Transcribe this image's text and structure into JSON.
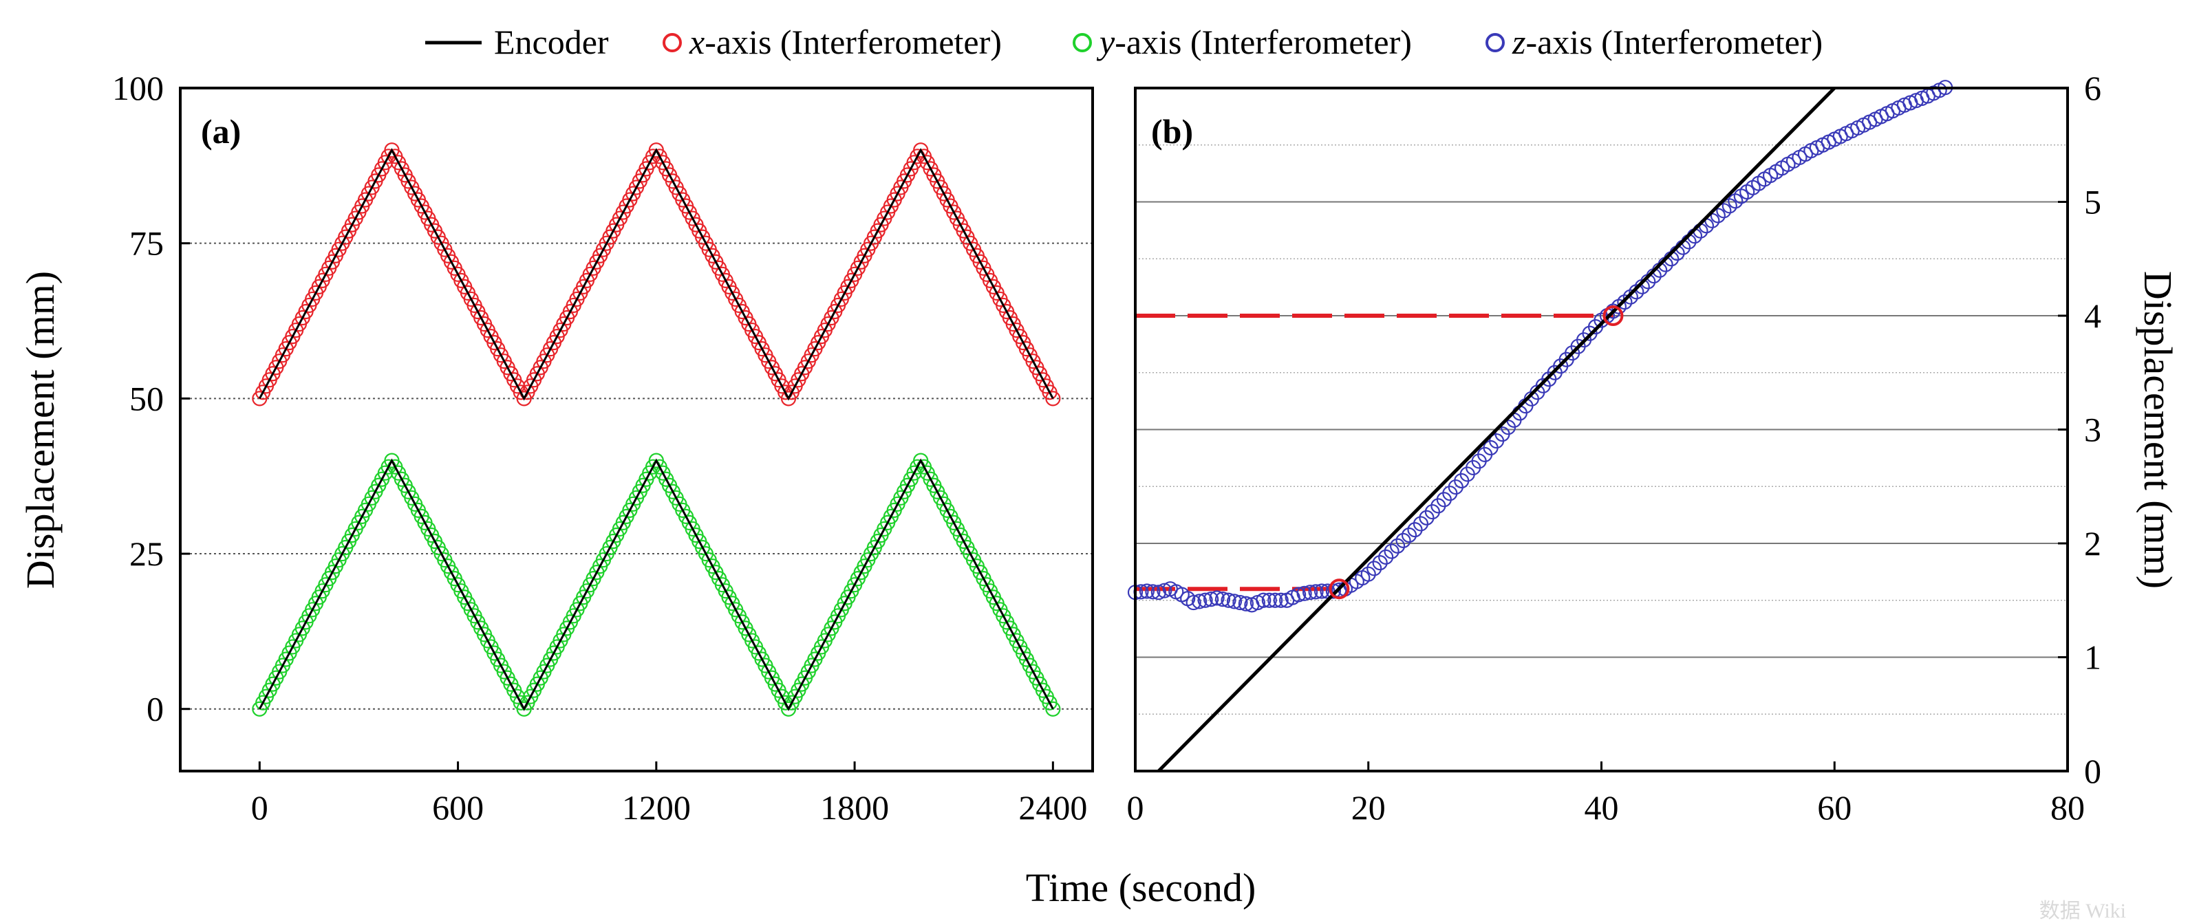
{
  "legend": {
    "encoder": "Encoder",
    "x_axis": {
      "prefix": "x",
      "suffix": "-axis (Interferometer)"
    },
    "y_axis": {
      "prefix": "y",
      "suffix": "-axis (Interferometer)"
    },
    "z_axis": {
      "prefix": "z",
      "suffix": "-axis (Interferometer)"
    }
  },
  "colors": {
    "encoder": "#000000",
    "x_axis": "#e8252b",
    "y_axis": "#1fd12c",
    "z_axis": "#3a3ab8",
    "guide": "#e21f26"
  },
  "xlabel": "Time (second)",
  "watermark": "数据 Wiki",
  "chart_data": [
    {
      "panel": "(a)",
      "type": "line",
      "ylabel": "Displacement (mm)",
      "xlim": [
        -240,
        2520
      ],
      "ylim": [
        -10,
        100
      ],
      "xticks": [
        0,
        600,
        1200,
        1800,
        2400
      ],
      "yticks": [
        0,
        25,
        50,
        75,
        100
      ],
      "grid": "dotted horizontal at 25, 50, 75",
      "series": [
        {
          "name": "Encoder (x)",
          "marker": "line",
          "x": [
            0,
            400,
            800,
            1200,
            1600,
            2000,
            2400
          ],
          "y": [
            50,
            90,
            50,
            90,
            50,
            90,
            50
          ]
        },
        {
          "name": "x-axis (Interferometer)",
          "marker": "circle",
          "x": [
            0,
            400,
            800,
            1200,
            1600,
            2000,
            2400
          ],
          "y": [
            50,
            90,
            50,
            90,
            50,
            90,
            50
          ]
        },
        {
          "name": "Encoder (y)",
          "marker": "line",
          "x": [
            0,
            400,
            800,
            1200,
            1600,
            2000,
            2400
          ],
          "y": [
            0,
            40,
            0,
            40,
            0,
            40,
            0
          ]
        },
        {
          "name": "y-axis (Interferometer)",
          "marker": "circle",
          "x": [
            0,
            400,
            800,
            1200,
            1600,
            2000,
            2400
          ],
          "y": [
            0,
            40,
            0,
            40,
            0,
            40,
            0
          ]
        }
      ]
    },
    {
      "panel": "(b)",
      "type": "line",
      "ylabel": "Displacement (mm)",
      "y_axis_side": "right",
      "xlim": [
        0,
        80
      ],
      "ylim": [
        0,
        6
      ],
      "xticks": [
        0,
        20,
        40,
        60,
        80
      ],
      "yticks": [
        0,
        1,
        2,
        3,
        4,
        5,
        6
      ],
      "grid": "solid at integer mm, dotted at half mm",
      "series": [
        {
          "name": "Encoder",
          "marker": "line",
          "x": [
            2,
            60
          ],
          "y": [
            0,
            6
          ]
        },
        {
          "name": "z-axis (Interferometer)",
          "marker": "circle",
          "x": [
            0,
            1,
            2,
            3,
            4,
            5,
            6,
            7,
            8,
            9,
            10,
            11,
            12,
            13,
            14,
            15,
            16,
            17,
            18,
            20,
            22,
            24,
            26,
            28,
            30,
            32,
            34,
            36,
            38,
            40,
            42,
            44,
            46,
            48,
            50,
            52,
            54,
            56,
            58,
            60,
            62,
            64,
            66,
            68,
            70
          ],
          "y": [
            1.57,
            1.58,
            1.57,
            1.6,
            1.55,
            1.48,
            1.5,
            1.52,
            1.5,
            1.48,
            1.46,
            1.5,
            1.5,
            1.5,
            1.55,
            1.57,
            1.58,
            1.58,
            1.6,
            1.73,
            1.93,
            2.12,
            2.33,
            2.55,
            2.78,
            3.02,
            3.27,
            3.5,
            3.73,
            3.96,
            4.12,
            4.3,
            4.5,
            4.7,
            4.88,
            5.05,
            5.2,
            5.33,
            5.45,
            5.55,
            5.65,
            5.75,
            5.85,
            5.93,
            6.03
          ]
        },
        {
          "name": "Marked points",
          "marker": "circle",
          "x": [
            17.5,
            41
          ],
          "y": [
            1.6,
            4.0
          ]
        },
        {
          "name": "Reference lines",
          "marker": "dashed",
          "levels": [
            1.6,
            4.0
          ]
        }
      ]
    }
  ]
}
